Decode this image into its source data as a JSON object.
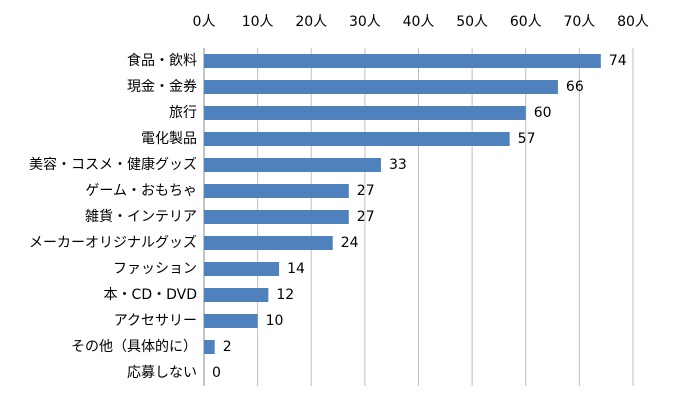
{
  "chart_data": {
    "type": "hbar",
    "categories": [
      "食品・飲料",
      "現金・金券",
      "旅行",
      "電化製品",
      "美容・コスメ・健康グッズ",
      "ゲーム・おもちゃ",
      "雑貨・インテリア",
      "メーカーオリジナルグッズ",
      "ファッション",
      "本・CD・DVD",
      "アクセサリー",
      "その他（具体的に）",
      "応募しない"
    ],
    "values": [
      74,
      66,
      60,
      57,
      33,
      27,
      27,
      24,
      14,
      12,
      10,
      2,
      0
    ],
    "color": "#4f81bd",
    "xlim": [
      0,
      80
    ],
    "xticks": [
      {
        "value": 0,
        "label": "0人"
      },
      {
        "value": 10,
        "label": "10人"
      },
      {
        "value": 20,
        "label": "20人"
      },
      {
        "value": 30,
        "label": "30人"
      },
      {
        "value": 40,
        "label": "40人"
      },
      {
        "value": 50,
        "label": "50人"
      },
      {
        "value": 60,
        "label": "60人"
      },
      {
        "value": 70,
        "label": "70人"
      },
      {
        "value": 80,
        "label": "80人"
      }
    ],
    "grid": true
  }
}
